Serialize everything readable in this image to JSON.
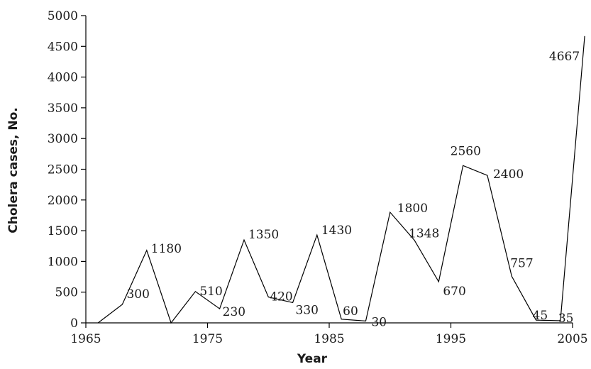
{
  "chart_data": {
    "type": "line",
    "xlabel": "Year",
    "ylabel": "Cholera cases, No.",
    "xlim": [
      1965,
      2006
    ],
    "ylim": [
      0,
      5000
    ],
    "x_ticks": [
      1965,
      1975,
      1985,
      1995,
      2005
    ],
    "y_ticks": [
      0,
      500,
      1000,
      1500,
      2000,
      2500,
      3000,
      3500,
      4000,
      4500,
      5000
    ],
    "grid": false,
    "line_color": "#000000",
    "series": [
      {
        "points": [
          {
            "x": 1966,
            "y": 0,
            "label": ""
          },
          {
            "x": 1968,
            "y": 300,
            "label": "300"
          },
          {
            "x": 1970,
            "y": 1180,
            "label": "1180"
          },
          {
            "x": 1972,
            "y": 0,
            "label": ""
          },
          {
            "x": 1974,
            "y": 510,
            "label": "510"
          },
          {
            "x": 1976,
            "y": 230,
            "label": "230"
          },
          {
            "x": 1978,
            "y": 1350,
            "label": "1350"
          },
          {
            "x": 1980,
            "y": 420,
            "label": "420"
          },
          {
            "x": 1982,
            "y": 330,
            "label": "330"
          },
          {
            "x": 1984,
            "y": 1430,
            "label": "1430"
          },
          {
            "x": 1986,
            "y": 60,
            "label": "60"
          },
          {
            "x": 1988,
            "y": 30,
            "label": "30"
          },
          {
            "x": 1990,
            "y": 1800,
            "label": "1800"
          },
          {
            "x": 1992,
            "y": 1348,
            "label": "1348"
          },
          {
            "x": 1994,
            "y": 670,
            "label": "670"
          },
          {
            "x": 1996,
            "y": 2560,
            "label": "2560"
          },
          {
            "x": 1998,
            "y": 2400,
            "label": "2400"
          },
          {
            "x": 2000,
            "y": 757,
            "label": "757"
          },
          {
            "x": 2002,
            "y": 45,
            "label": "45"
          },
          {
            "x": 2004,
            "y": 35,
            "label": "35"
          },
          {
            "x": 2006,
            "y": 4667,
            "label": "4667"
          }
        ]
      }
    ]
  }
}
